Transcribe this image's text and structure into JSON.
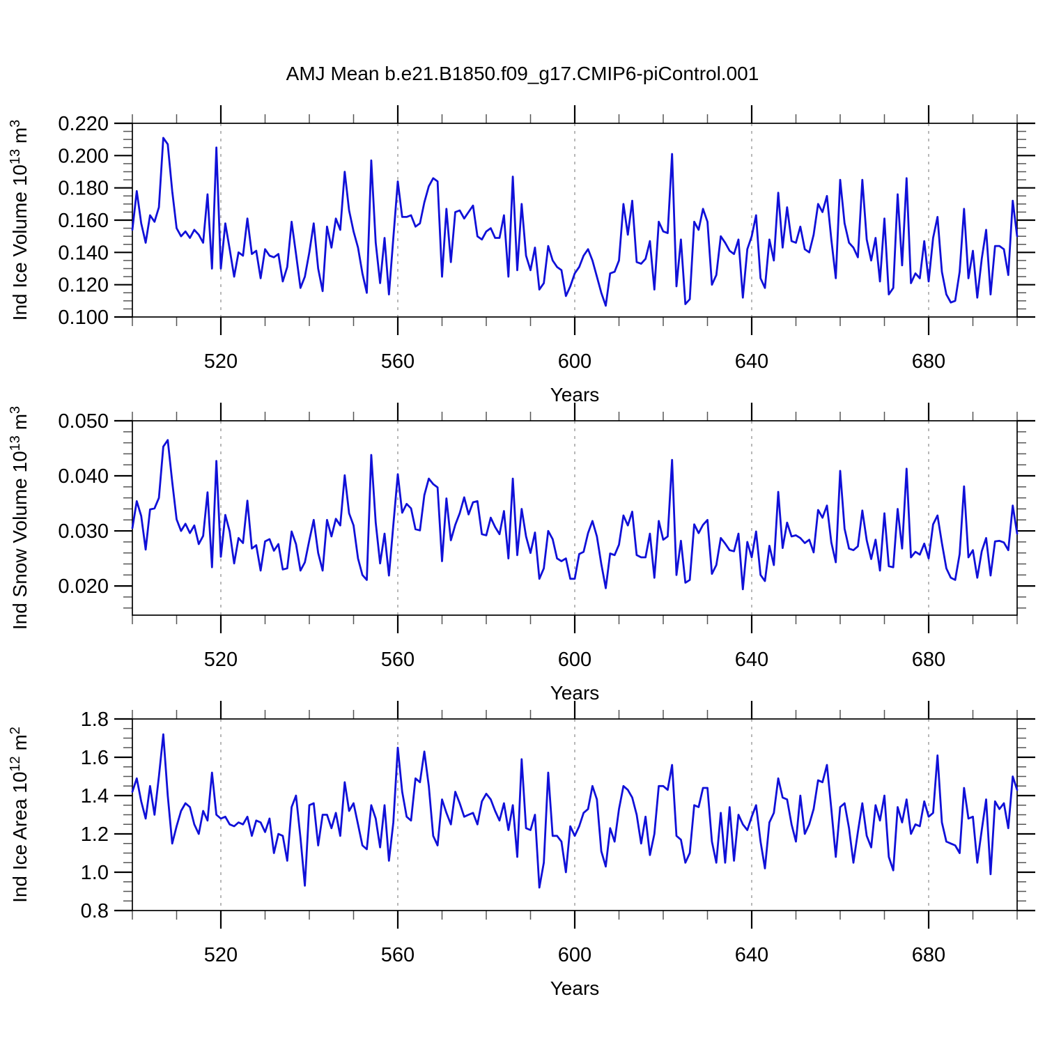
{
  "title": "AMJ Mean b.e21.B1850.f09_g17.CMIP6-piControl.001",
  "colors": {
    "line": "#1010d8",
    "grid": "#999999",
    "frame": "#000000",
    "background": "#ffffff"
  },
  "chart_data": [
    {
      "type": "line",
      "panel": "ice-volume",
      "ylabel": {
        "base": "Ind Ice Volume 10",
        "sup1": "13",
        "mid": " m",
        "sup2": "3"
      },
      "xlabel": "Years",
      "x_start": 500,
      "x_end": 700,
      "x_step": 1,
      "xlim": [
        500,
        700
      ],
      "xticks_major": [
        520,
        560,
        600,
        640,
        680
      ],
      "xtick_labels": [
        "520",
        "560",
        "600",
        "640",
        "680"
      ],
      "xtick_minor_step": 10,
      "ylim": [
        0.1,
        0.22
      ],
      "yticks": [
        {
          "v": 0.1,
          "label": "0.100"
        },
        {
          "v": 0.12,
          "label": "0.120"
        },
        {
          "v": 0.14,
          "label": "0.140"
        },
        {
          "v": 0.16,
          "label": "0.160"
        },
        {
          "v": 0.18,
          "label": "0.180"
        },
        {
          "v": 0.2,
          "label": "0.200"
        },
        {
          "v": 0.22,
          "label": "0.220"
        }
      ],
      "ytick_minor_start": 0.1,
      "ytick_minor_step": 0.005,
      "grid": "vertical dashed at major x ticks",
      "values": [
        0.154,
        0.178,
        0.158,
        0.146,
        0.163,
        0.159,
        0.168,
        0.211,
        0.207,
        0.178,
        0.155,
        0.15,
        0.153,
        0.149,
        0.154,
        0.151,
        0.146,
        0.176,
        0.13,
        0.205,
        0.13,
        0.158,
        0.142,
        0.125,
        0.14,
        0.138,
        0.161,
        0.139,
        0.141,
        0.124,
        0.142,
        0.138,
        0.137,
        0.139,
        0.122,
        0.131,
        0.159,
        0.139,
        0.118,
        0.125,
        0.14,
        0.158,
        0.13,
        0.116,
        0.156,
        0.143,
        0.161,
        0.154,
        0.19,
        0.166,
        0.153,
        0.143,
        0.127,
        0.115,
        0.197,
        0.146,
        0.121,
        0.149,
        0.114,
        0.149,
        0.184,
        0.162,
        0.162,
        0.163,
        0.156,
        0.158,
        0.171,
        0.181,
        0.186,
        0.184,
        0.125,
        0.167,
        0.134,
        0.165,
        0.166,
        0.161,
        0.165,
        0.169,
        0.15,
        0.148,
        0.153,
        0.155,
        0.149,
        0.149,
        0.163,
        0.125,
        0.187,
        0.129,
        0.17,
        0.138,
        0.129,
        0.143,
        0.117,
        0.121,
        0.144,
        0.135,
        0.131,
        0.129,
        0.113,
        0.119,
        0.127,
        0.131,
        0.138,
        0.142,
        0.135,
        0.125,
        0.115,
        0.107,
        0.127,
        0.128,
        0.135,
        0.17,
        0.151,
        0.172,
        0.134,
        0.133,
        0.136,
        0.147,
        0.117,
        0.159,
        0.153,
        0.152,
        0.201,
        0.119,
        0.148,
        0.108,
        0.111,
        0.159,
        0.154,
        0.167,
        0.159,
        0.12,
        0.126,
        0.15,
        0.146,
        0.141,
        0.139,
        0.148,
        0.112,
        0.142,
        0.15,
        0.163,
        0.124,
        0.118,
        0.148,
        0.135,
        0.177,
        0.143,
        0.168,
        0.147,
        0.146,
        0.156,
        0.142,
        0.14,
        0.151,
        0.17,
        0.165,
        0.175,
        0.148,
        0.124,
        0.185,
        0.158,
        0.146,
        0.143,
        0.137,
        0.185,
        0.148,
        0.135,
        0.149,
        0.122,
        0.161,
        0.114,
        0.118,
        0.176,
        0.132,
        0.186,
        0.121,
        0.127,
        0.124,
        0.147,
        0.122,
        0.149,
        0.162,
        0.128,
        0.114,
        0.109,
        0.11,
        0.128,
        0.167,
        0.124,
        0.141,
        0.112,
        0.136,
        0.154,
        0.114,
        0.144,
        0.144,
        0.142,
        0.126,
        0.172,
        0.15
      ]
    },
    {
      "type": "line",
      "panel": "snow-volume",
      "ylabel": {
        "base": "Ind Snow Volume 10",
        "sup1": "13",
        "mid": " m",
        "sup2": "3"
      },
      "xlabel": "Years",
      "x_start": 500,
      "x_end": 700,
      "x_step": 1,
      "xlim": [
        500,
        700
      ],
      "xticks_major": [
        520,
        560,
        600,
        640,
        680
      ],
      "xtick_labels": [
        "520",
        "560",
        "600",
        "640",
        "680"
      ],
      "xtick_minor_step": 10,
      "ylim": [
        0.0147,
        0.05
      ],
      "yticks": [
        {
          "v": 0.02,
          "label": "0.020"
        },
        {
          "v": 0.03,
          "label": "0.030"
        },
        {
          "v": 0.04,
          "label": "0.040"
        },
        {
          "v": 0.05,
          "label": "0.050"
        }
      ],
      "ytick_minor_start": 0.016,
      "ytick_minor_step": 0.002,
      "grid": "vertical dashed at major x ticks",
      "values": [
        0.0305,
        0.0354,
        0.0327,
        0.0266,
        0.0339,
        0.0341,
        0.036,
        0.0453,
        0.0465,
        0.0389,
        0.0321,
        0.03,
        0.0313,
        0.0296,
        0.031,
        0.0276,
        0.0291,
        0.037,
        0.0234,
        0.0427,
        0.0253,
        0.0329,
        0.0299,
        0.0241,
        0.0287,
        0.0278,
        0.0355,
        0.0268,
        0.0274,
        0.0228,
        0.0281,
        0.0285,
        0.0264,
        0.0276,
        0.023,
        0.0232,
        0.0299,
        0.0276,
        0.0228,
        0.0243,
        0.0283,
        0.032,
        0.026,
        0.0228,
        0.032,
        0.029,
        0.0322,
        0.031,
        0.0401,
        0.0332,
        0.031,
        0.025,
        0.022,
        0.0211,
        0.0438,
        0.0315,
        0.0241,
        0.0295,
        0.0219,
        0.0311,
        0.0403,
        0.0333,
        0.0349,
        0.0341,
        0.0303,
        0.0301,
        0.0365,
        0.0395,
        0.0385,
        0.0379,
        0.0245,
        0.0359,
        0.0283,
        0.0311,
        0.0332,
        0.0361,
        0.033,
        0.0352,
        0.0354,
        0.0294,
        0.0292,
        0.0324,
        0.0307,
        0.0294,
        0.0336,
        0.025,
        0.0395,
        0.0256,
        0.034,
        0.029,
        0.026,
        0.0297,
        0.0213,
        0.0232,
        0.03,
        0.0285,
        0.025,
        0.0245,
        0.025,
        0.0213,
        0.0213,
        0.0258,
        0.0262,
        0.0296,
        0.0318,
        0.029,
        0.024,
        0.0196,
        0.0259,
        0.0256,
        0.0275,
        0.0328,
        0.031,
        0.0335,
        0.0256,
        0.0252,
        0.0252,
        0.0295,
        0.0215,
        0.0318,
        0.0284,
        0.029,
        0.0429,
        0.022,
        0.0282,
        0.0206,
        0.0211,
        0.0312,
        0.0296,
        0.0311,
        0.032,
        0.0222,
        0.0238,
        0.0287,
        0.0277,
        0.0265,
        0.0263,
        0.0295,
        0.0194,
        0.028,
        0.0252,
        0.0299,
        0.022,
        0.0209,
        0.0273,
        0.0238,
        0.0371,
        0.0269,
        0.0315,
        0.029,
        0.0292,
        0.0287,
        0.0278,
        0.0284,
        0.0261,
        0.0338,
        0.0324,
        0.0346,
        0.0279,
        0.0243,
        0.0409,
        0.0304,
        0.0268,
        0.0265,
        0.0272,
        0.0337,
        0.0283,
        0.0249,
        0.0284,
        0.0228,
        0.0332,
        0.0236,
        0.0234,
        0.034,
        0.0268,
        0.0413,
        0.0252,
        0.0262,
        0.0257,
        0.0277,
        0.025,
        0.0312,
        0.0328,
        0.0278,
        0.0232,
        0.0215,
        0.0211,
        0.0258,
        0.0381,
        0.0252,
        0.0265,
        0.0215,
        0.0263,
        0.0287,
        0.0219,
        0.0281,
        0.0282,
        0.0279,
        0.0265,
        0.0346,
        0.0295
      ]
    },
    {
      "type": "line",
      "panel": "ice-area",
      "ylabel": {
        "base": "Ind Ice Area 10",
        "sup1": "12",
        "mid": " m",
        "sup2": "2"
      },
      "xlabel": "Years",
      "x_start": 500,
      "x_end": 700,
      "x_step": 1,
      "xlim": [
        500,
        700
      ],
      "xticks_major": [
        520,
        560,
        600,
        640,
        680
      ],
      "xtick_labels": [
        "520",
        "560",
        "600",
        "640",
        "680"
      ],
      "xtick_minor_step": 10,
      "ylim": [
        0.8,
        1.8
      ],
      "yticks": [
        {
          "v": 0.8,
          "label": "0.8"
        },
        {
          "v": 1.0,
          "label": "1.0"
        },
        {
          "v": 1.2,
          "label": "1.2"
        },
        {
          "v": 1.4,
          "label": "1.4"
        },
        {
          "v": 1.6,
          "label": "1.6"
        },
        {
          "v": 1.8,
          "label": "1.8"
        }
      ],
      "ytick_minor_start": 0.8,
      "ytick_minor_step": 0.05,
      "grid": "vertical dashed at major x ticks",
      "values": [
        1.42,
        1.49,
        1.37,
        1.28,
        1.45,
        1.3,
        1.5,
        1.72,
        1.4,
        1.15,
        1.24,
        1.32,
        1.36,
        1.34,
        1.25,
        1.2,
        1.32,
        1.27,
        1.52,
        1.3,
        1.28,
        1.29,
        1.25,
        1.24,
        1.26,
        1.25,
        1.29,
        1.19,
        1.27,
        1.26,
        1.21,
        1.28,
        1.1,
        1.2,
        1.19,
        1.06,
        1.34,
        1.4,
        1.18,
        0.93,
        1.35,
        1.36,
        1.14,
        1.3,
        1.3,
        1.23,
        1.31,
        1.19,
        1.47,
        1.32,
        1.36,
        1.25,
        1.14,
        1.12,
        1.35,
        1.28,
        1.13,
        1.35,
        1.06,
        1.26,
        1.65,
        1.42,
        1.29,
        1.27,
        1.49,
        1.47,
        1.63,
        1.45,
        1.19,
        1.14,
        1.38,
        1.31,
        1.25,
        1.42,
        1.36,
        1.29,
        1.3,
        1.31,
        1.25,
        1.37,
        1.41,
        1.38,
        1.32,
        1.27,
        1.36,
        1.22,
        1.35,
        1.08,
        1.59,
        1.23,
        1.22,
        1.3,
        0.92,
        1.05,
        1.52,
        1.19,
        1.19,
        1.16,
        1.0,
        1.24,
        1.19,
        1.24,
        1.31,
        1.33,
        1.45,
        1.38,
        1.11,
        1.03,
        1.23,
        1.16,
        1.33,
        1.45,
        1.43,
        1.39,
        1.3,
        1.15,
        1.29,
        1.09,
        1.2,
        1.45,
        1.45,
        1.43,
        1.56,
        1.19,
        1.17,
        1.05,
        1.1,
        1.35,
        1.34,
        1.44,
        1.44,
        1.16,
        1.05,
        1.31,
        1.05,
        1.34,
        1.06,
        1.3,
        1.25,
        1.22,
        1.29,
        1.35,
        1.16,
        1.02,
        1.26,
        1.31,
        1.49,
        1.39,
        1.38,
        1.25,
        1.16,
        1.4,
        1.2,
        1.25,
        1.33,
        1.48,
        1.47,
        1.56,
        1.33,
        1.08,
        1.34,
        1.36,
        1.23,
        1.05,
        1.21,
        1.36,
        1.19,
        1.13,
        1.35,
        1.27,
        1.4,
        1.08,
        1.01,
        1.34,
        1.26,
        1.38,
        1.2,
        1.25,
        1.24,
        1.37,
        1.29,
        1.31,
        1.61,
        1.26,
        1.16,
        1.15,
        1.14,
        1.1,
        1.44,
        1.28,
        1.29,
        1.05,
        1.22,
        1.38,
        0.99,
        1.37,
        1.33,
        1.36,
        1.23,
        1.5,
        1.43
      ]
    }
  ]
}
